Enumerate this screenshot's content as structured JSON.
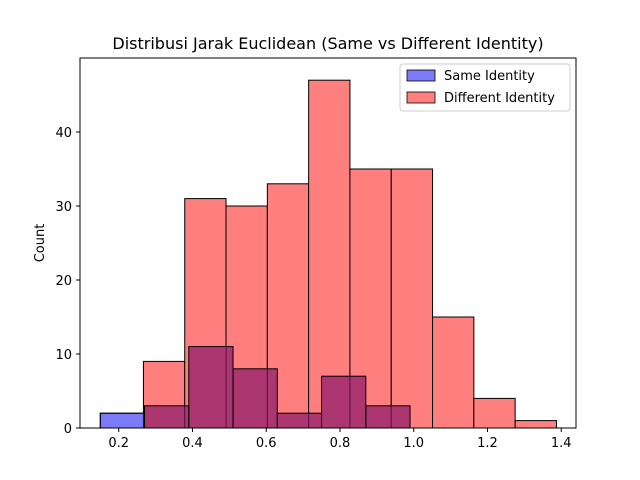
{
  "chart_data": {
    "type": "bar",
    "title": "Distribusi Jarak Euclidean (Same vs Different Identity)",
    "xlabel": "",
    "ylabel": "Count",
    "xlim": [
      0.095,
      1.44
    ],
    "ylim": [
      0,
      50
    ],
    "xticks": [
      0.2,
      0.4,
      0.6,
      0.8,
      1.0,
      1.2,
      1.4
    ],
    "xtick_labels": [
      "0.2",
      "0.4",
      "0.6",
      "0.8",
      "1.0",
      "1.2",
      "1.4"
    ],
    "yticks": [
      0,
      10,
      20,
      30,
      40
    ],
    "ytick_labels": [
      "0",
      "10",
      "20",
      "30",
      "40"
    ],
    "grid": false,
    "legend_position": "top-right",
    "series": [
      {
        "name": "Same Identity",
        "color": "#7b7bf7",
        "bins": [
          [
            0.15,
            0.27,
            2
          ],
          [
            0.27,
            0.39,
            3
          ],
          [
            0.39,
            0.51,
            11
          ],
          [
            0.51,
            0.63,
            8
          ],
          [
            0.63,
            0.75,
            2
          ],
          [
            0.75,
            0.87,
            7
          ],
          [
            0.87,
            0.99,
            3
          ]
        ]
      },
      {
        "name": "Different Identity",
        "color": "#ff7f7f",
        "bins": [
          [
            0.267,
            0.379,
            9
          ],
          [
            0.379,
            0.491,
            31
          ],
          [
            0.491,
            0.603,
            30
          ],
          [
            0.603,
            0.715,
            33
          ],
          [
            0.715,
            0.827,
            47
          ],
          [
            0.827,
            0.939,
            35
          ],
          [
            0.939,
            1.051,
            35
          ],
          [
            1.051,
            1.163,
            15
          ],
          [
            1.163,
            1.275,
            4
          ],
          [
            1.275,
            1.387,
            1
          ]
        ]
      }
    ]
  }
}
